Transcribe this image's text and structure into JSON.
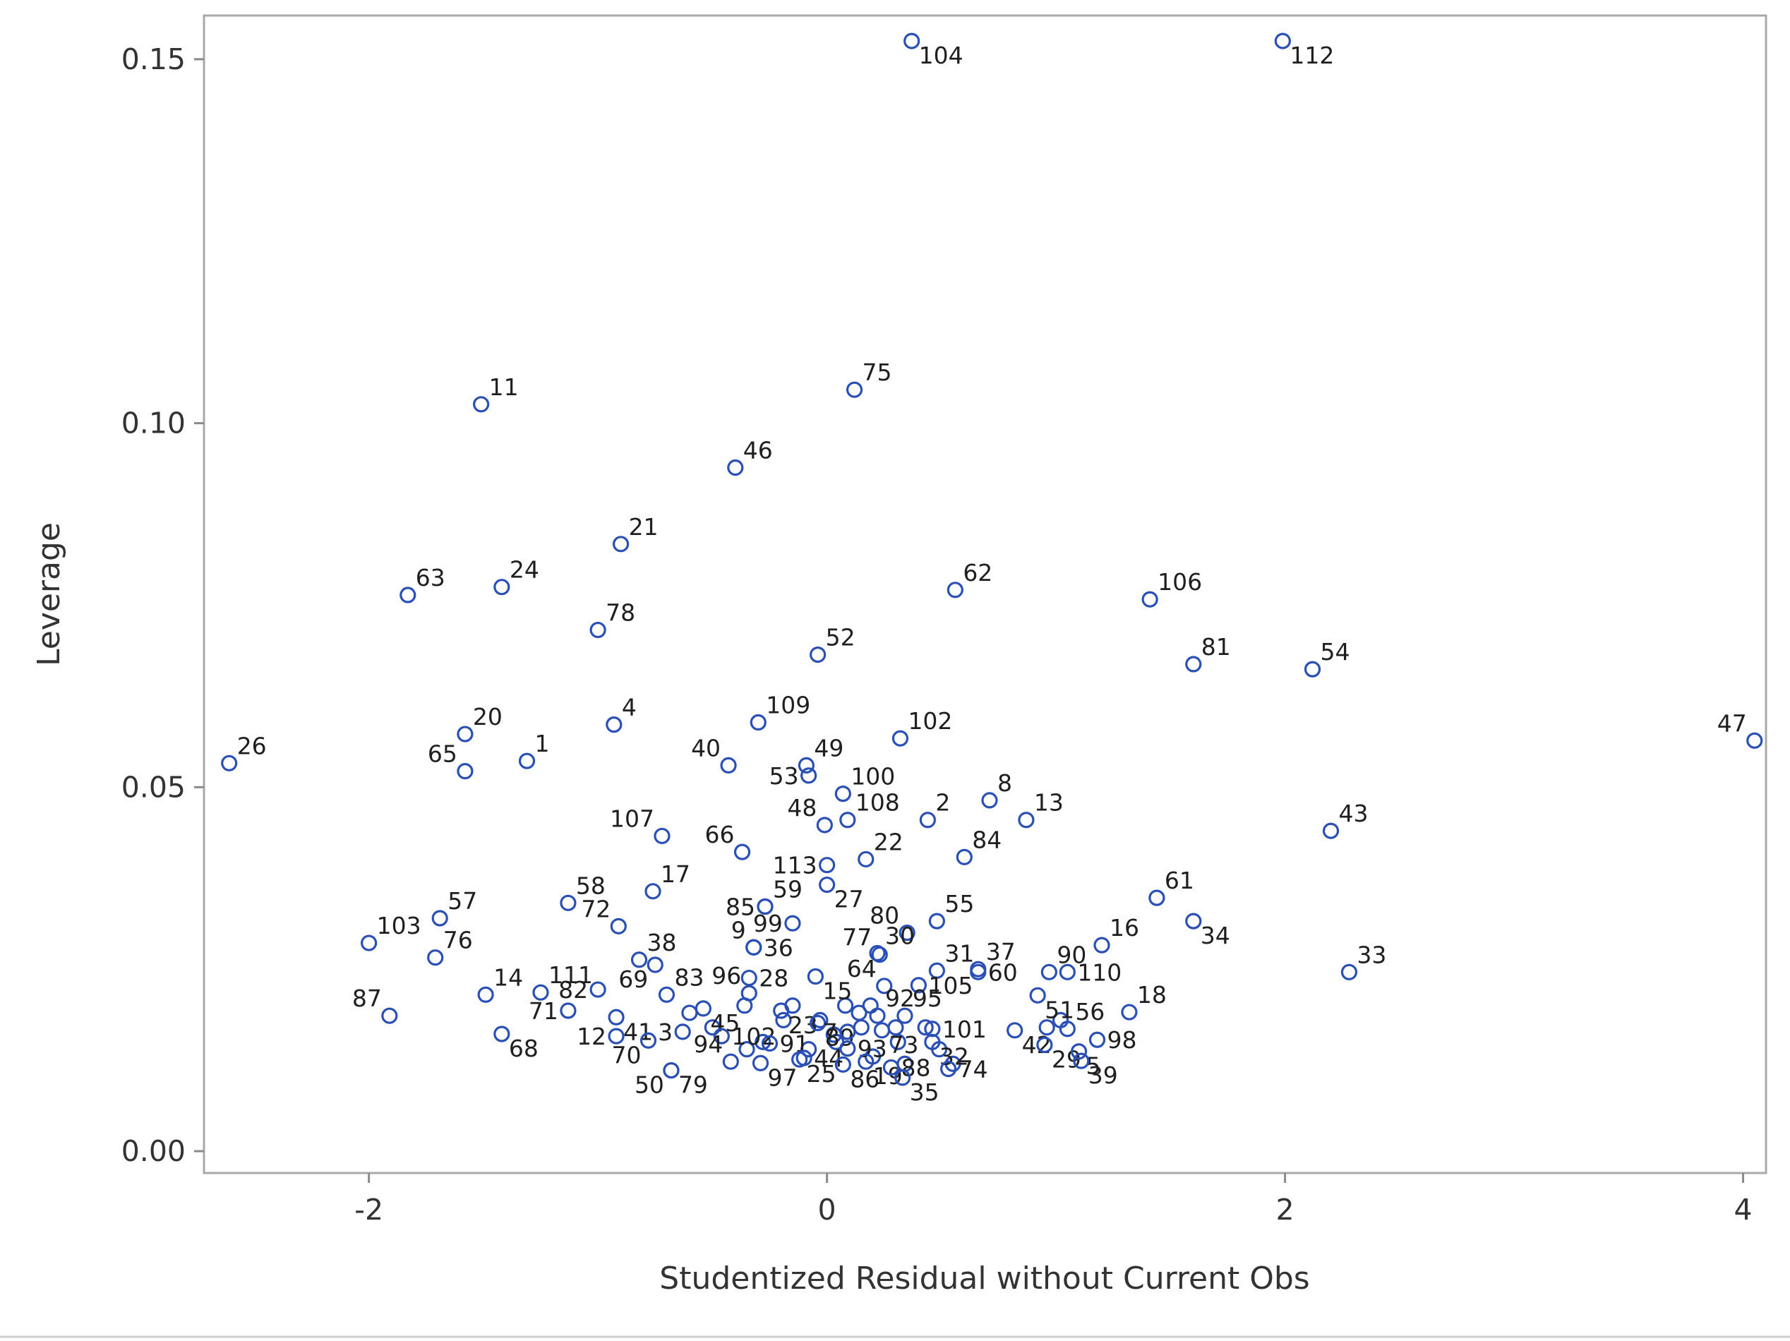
{
  "chart_data": {
    "type": "scatter",
    "title": "",
    "xlabel": "Studentized Residual without Current Obs",
    "ylabel": "Leverage",
    "xlim": [
      -2.72,
      4.1
    ],
    "ylim": [
      -0.003,
      0.156
    ],
    "xticks": [
      -2,
      0,
      2,
      4
    ],
    "yticks": [
      0.0,
      0.05,
      0.1,
      0.15
    ],
    "ytick_labels": [
      "0.00",
      "0.05",
      "0.10",
      "0.15"
    ],
    "grid": false,
    "legend": "none",
    "marker_color": "#2a4fb5",
    "points": [
      {
        "label": "104",
        "x": 0.37,
        "y": 0.1525,
        "lp": "br"
      },
      {
        "label": "112",
        "x": 1.99,
        "y": 0.1525,
        "lp": "br"
      },
      {
        "label": "11",
        "x": -1.51,
        "y": 0.1026,
        "lp": "tr"
      },
      {
        "label": "75",
        "x": 0.12,
        "y": 0.1046,
        "lp": "tr"
      },
      {
        "label": "46",
        "x": -0.4,
        "y": 0.0939,
        "lp": "tr"
      },
      {
        "label": "21",
        "x": -0.9,
        "y": 0.0834,
        "lp": "tr"
      },
      {
        "label": "63",
        "x": -1.83,
        "y": 0.0764,
        "lp": "tr"
      },
      {
        "label": "24",
        "x": -1.42,
        "y": 0.0775,
        "lp": "tr"
      },
      {
        "label": "62",
        "x": 0.56,
        "y": 0.0771,
        "lp": "tr"
      },
      {
        "label": "106",
        "x": 1.41,
        "y": 0.0758,
        "lp": "tr"
      },
      {
        "label": "78",
        "x": -1.0,
        "y": 0.0716,
        "lp": "tr"
      },
      {
        "label": "52",
        "x": -0.04,
        "y": 0.0682,
        "lp": "tr"
      },
      {
        "label": "81",
        "x": 1.6,
        "y": 0.0669,
        "lp": "tr"
      },
      {
        "label": "54",
        "x": 2.12,
        "y": 0.0662,
        "lp": "tr"
      },
      {
        "label": "4",
        "x": -0.93,
        "y": 0.0586,
        "lp": "tr"
      },
      {
        "label": "109",
        "x": -0.3,
        "y": 0.0589,
        "lp": "tr"
      },
      {
        "label": "20",
        "x": -1.58,
        "y": 0.0573,
        "lp": "tr"
      },
      {
        "label": "102",
        "x": 0.32,
        "y": 0.0567,
        "lp": "tr"
      },
      {
        "label": "26",
        "x": -2.61,
        "y": 0.0533,
        "lp": "tr"
      },
      {
        "label": "1",
        "x": -1.31,
        "y": 0.0536,
        "lp": "tr"
      },
      {
        "label": "47",
        "x": 4.05,
        "y": 0.0564,
        "lp": "tl"
      },
      {
        "label": "65",
        "x": -1.58,
        "y": 0.0522,
        "lp": "tl"
      },
      {
        "label": "40",
        "x": -0.43,
        "y": 0.053,
        "lp": "tl"
      },
      {
        "label": "49",
        "x": -0.09,
        "y": 0.053,
        "lp": "tr"
      },
      {
        "label": "53",
        "x": -0.08,
        "y": 0.0516,
        "lp": "l"
      },
      {
        "label": "100",
        "x": 0.07,
        "y": 0.0491,
        "lp": "tr"
      },
      {
        "label": "8",
        "x": 0.71,
        "y": 0.0482,
        "lp": "tr"
      },
      {
        "label": "13",
        "x": 0.87,
        "y": 0.0455,
        "lp": "tr"
      },
      {
        "label": "2",
        "x": 0.44,
        "y": 0.0455,
        "lp": "tr"
      },
      {
        "label": "48",
        "x": -0.01,
        "y": 0.0448,
        "lp": "tl"
      },
      {
        "label": "108",
        "x": 0.09,
        "y": 0.0455,
        "lp": "tr"
      },
      {
        "label": "43",
        "x": 2.2,
        "y": 0.044,
        "lp": "tr"
      },
      {
        "label": "107",
        "x": -0.72,
        "y": 0.0433,
        "lp": "tl"
      },
      {
        "label": "66",
        "x": -0.37,
        "y": 0.0411,
        "lp": "tl"
      },
      {
        "label": "22",
        "x": 0.17,
        "y": 0.0401,
        "lp": "tr"
      },
      {
        "label": "84",
        "x": 0.6,
        "y": 0.0404,
        "lp": "tr"
      },
      {
        "label": "113",
        "x": 0.0,
        "y": 0.0393,
        "lp": "l"
      },
      {
        "label": "17",
        "x": -0.76,
        "y": 0.0357,
        "lp": "tr"
      },
      {
        "label": "61",
        "x": 1.44,
        "y": 0.0348,
        "lp": "tr"
      },
      {
        "label": "58",
        "x": -1.13,
        "y": 0.0341,
        "lp": "tr"
      },
      {
        "label": "57",
        "x": -1.69,
        "y": 0.032,
        "lp": "tr"
      },
      {
        "label": "85",
        "x": -0.27,
        "y": 0.0336,
        "lp": "l"
      },
      {
        "label": "59",
        "x": -0.27,
        "y": 0.0336,
        "lp": "tr"
      },
      {
        "label": "27",
        "x": 0.0,
        "y": 0.0366,
        "lp": "br"
      },
      {
        "label": "55",
        "x": 0.48,
        "y": 0.0316,
        "lp": "tr"
      },
      {
        "label": "80",
        "x": 0.35,
        "y": 0.03,
        "lp": "tl"
      },
      {
        "label": "72",
        "x": -0.91,
        "y": 0.0309,
        "lp": "tl"
      },
      {
        "label": "99",
        "x": -0.15,
        "y": 0.0313,
        "lp": "l"
      },
      {
        "label": "34",
        "x": 1.6,
        "y": 0.0316,
        "lp": "br"
      },
      {
        "label": "103",
        "x": -2.0,
        "y": 0.0286,
        "lp": "tr"
      },
      {
        "label": "16",
        "x": 1.2,
        "y": 0.0283,
        "lp": "tr"
      },
      {
        "label": "76",
        "x": -1.71,
        "y": 0.0266,
        "lp": "tr"
      },
      {
        "label": "38",
        "x": -0.82,
        "y": 0.0263,
        "lp": "tr"
      },
      {
        "label": "9",
        "x": -0.32,
        "y": 0.028,
        "lp": "tl"
      },
      {
        "label": "36",
        "x": -0.32,
        "y": 0.028,
        "lp": "r"
      },
      {
        "label": "30",
        "x": 0.22,
        "y": 0.0272,
        "lp": "tr"
      },
      {
        "label": "77",
        "x": 0.23,
        "y": 0.027,
        "lp": "tl"
      },
      {
        "label": "31",
        "x": 0.48,
        "y": 0.0248,
        "lp": "tr"
      },
      {
        "label": "37",
        "x": 0.66,
        "y": 0.025,
        "lp": "tr"
      },
      {
        "label": "90",
        "x": 0.97,
        "y": 0.0246,
        "lp": "tr"
      },
      {
        "label": "33",
        "x": 2.28,
        "y": 0.0246,
        "lp": "tr"
      },
      {
        "label": "14",
        "x": -1.49,
        "y": 0.0215,
        "lp": "tr"
      },
      {
        "label": "111",
        "x": -1.25,
        "y": 0.0218,
        "lp": "tr"
      },
      {
        "label": "83",
        "x": -0.7,
        "y": 0.0215,
        "lp": "tr"
      },
      {
        "label": "28",
        "x": -0.34,
        "y": 0.0238,
        "lp": "r"
      },
      {
        "label": "60",
        "x": 0.66,
        "y": 0.0246,
        "lp": "r"
      },
      {
        "label": "110",
        "x": 1.05,
        "y": 0.0246,
        "lp": "r"
      },
      {
        "label": "82",
        "x": -1.0,
        "y": 0.0222,
        "lp": "l"
      },
      {
        "label": "69",
        "x": -0.75,
        "y": 0.0256,
        "lp": "bl"
      },
      {
        "label": "96",
        "x": -0.34,
        "y": 0.0217,
        "lp": "tl"
      },
      {
        "label": "15",
        "x": -0.05,
        "y": 0.024,
        "lp": "br"
      },
      {
        "label": "64",
        "x": 0.25,
        "y": 0.0227,
        "lp": "tl"
      },
      {
        "label": "105",
        "x": 0.4,
        "y": 0.0228,
        "lp": "r"
      },
      {
        "label": "18",
        "x": 1.32,
        "y": 0.0191,
        "lp": "tr"
      },
      {
        "label": "87",
        "x": -1.91,
        "y": 0.0186,
        "lp": "tl"
      },
      {
        "label": "71",
        "x": -1.13,
        "y": 0.0193,
        "lp": "l"
      },
      {
        "label": "51",
        "x": 0.92,
        "y": 0.0214,
        "lp": "br"
      },
      {
        "label": "41",
        "x": -0.92,
        "y": 0.0184,
        "lp": "br"
      },
      {
        "label": "45",
        "x": -0.54,
        "y": 0.0196,
        "lp": "br"
      },
      {
        "label": "23",
        "x": -0.2,
        "y": 0.0193,
        "lp": "br"
      },
      {
        "label": "92",
        "x": 0.22,
        "y": 0.0186,
        "lp": "tr"
      },
      {
        "label": "95",
        "x": 0.34,
        "y": 0.0186,
        "lp": "tr"
      },
      {
        "label": "56",
        "x": 1.05,
        "y": 0.0168,
        "lp": "tr"
      },
      {
        "label": "3",
        "x": -0.63,
        "y": 0.0164,
        "lp": "l"
      },
      {
        "label": "12",
        "x": -0.92,
        "y": 0.0158,
        "lp": "l"
      },
      {
        "label": "68",
        "x": -1.42,
        "y": 0.0161,
        "lp": "br"
      },
      {
        "label": "70",
        "x": -0.78,
        "y": 0.0152,
        "lp": "bl"
      },
      {
        "label": "102",
        "x": -0.46,
        "y": 0.0158,
        "lp": "r"
      },
      {
        "label": "91",
        "x": -0.25,
        "y": 0.0148,
        "lp": "r"
      },
      {
        "label": "89",
        "x": -0.04,
        "y": 0.0176,
        "lp": "br"
      },
      {
        "label": "7",
        "x": 0.09,
        "y": 0.0164,
        "lp": "l"
      },
      {
        "label": "73",
        "x": 0.24,
        "y": 0.0166,
        "lp": "br"
      },
      {
        "label": "101",
        "x": 0.46,
        "y": 0.0168,
        "lp": "r"
      },
      {
        "label": "98",
        "x": 1.18,
        "y": 0.0153,
        "lp": "r"
      },
      {
        "label": "42",
        "x": 0.82,
        "y": 0.0166,
        "lp": "br"
      },
      {
        "label": "32",
        "x": 0.46,
        "y": 0.015,
        "lp": "br"
      },
      {
        "label": "94",
        "x": -0.42,
        "y": 0.0123,
        "lp": "tl"
      },
      {
        "label": "44",
        "x": -0.1,
        "y": 0.0128,
        "lp": "r"
      },
      {
        "label": "93",
        "x": 0.09,
        "y": 0.0141,
        "lp": "r"
      },
      {
        "label": "29",
        "x": 0.95,
        "y": 0.0146,
        "lp": "br"
      },
      {
        "label": "5",
        "x": 1.1,
        "y": 0.0137,
        "lp": "br"
      },
      {
        "label": "74",
        "x": 0.53,
        "y": 0.0113,
        "lp": "r"
      },
      {
        "label": "50",
        "x": -0.68,
        "y": 0.0111,
        "lp": "bl"
      },
      {
        "label": "79",
        "x": -0.68,
        "y": 0.0111,
        "lp": "br"
      },
      {
        "label": "97",
        "x": -0.29,
        "y": 0.0121,
        "lp": "br"
      },
      {
        "label": "25",
        "x": -0.12,
        "y": 0.0126,
        "lp": "br"
      },
      {
        "label": "86",
        "x": 0.07,
        "y": 0.0119,
        "lp": "br"
      },
      {
        "label": "19",
        "x": 0.17,
        "y": 0.0123,
        "lp": "br"
      },
      {
        "label": "88",
        "x": 0.28,
        "y": 0.0115,
        "lp": "r"
      },
      {
        "label": "35",
        "x": 0.33,
        "y": 0.0101,
        "lp": "br"
      },
      {
        "label": "39",
        "x": 1.11,
        "y": 0.0124,
        "lp": "br"
      }
    ],
    "unlabeled_points": [
      [
        -0.6,
        0.019
      ],
      [
        -0.5,
        0.017
      ],
      [
        -0.36,
        0.02
      ],
      [
        -0.28,
        0.015
      ],
      [
        -0.19,
        0.018
      ],
      [
        -0.15,
        0.02
      ],
      [
        -0.03,
        0.018
      ],
      [
        0.03,
        0.016
      ],
      [
        0.08,
        0.02
      ],
      [
        0.14,
        0.019
      ],
      [
        0.15,
        0.017
      ],
      [
        0.19,
        0.02
      ],
      [
        0.3,
        0.017
      ],
      [
        0.31,
        0.015
      ],
      [
        0.34,
        0.012
      ],
      [
        0.43,
        0.017
      ],
      [
        0.49,
        0.014
      ],
      [
        0.55,
        0.012
      ],
      [
        0.96,
        0.017
      ],
      [
        1.02,
        0.018
      ],
      [
        0.2,
        0.013
      ],
      [
        -0.08,
        0.014
      ],
      [
        0.04,
        0.015
      ],
      [
        -0.35,
        0.014
      ]
    ]
  }
}
